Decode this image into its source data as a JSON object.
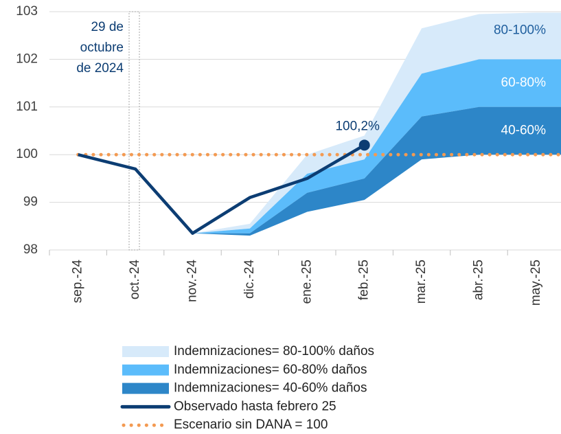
{
  "chart_data": {
    "type": "line",
    "categories": [
      "sep.-24",
      "oct.-24",
      "nov.-24",
      "dic.-24",
      "ene.-25",
      "feb.-25",
      "mar.-25",
      "abr.-25",
      "may.-25"
    ],
    "ylim": [
      98,
      103
    ],
    "yticks": [
      98,
      99,
      100,
      101,
      102,
      103
    ],
    "grid": true,
    "annotation": [
      "29 de",
      "octubre",
      "de 2024"
    ],
    "series": [
      {
        "name": "Indemnizaciones= 80-100% daños",
        "kind": "range",
        "label": "80-100%",
        "color": "#d7eafa",
        "lower": [
          null,
          null,
          98.35,
          98.45,
          99.6,
          99.9,
          101.7,
          102.0,
          102.0
        ],
        "upper": [
          null,
          null,
          98.35,
          98.55,
          100.0,
          100.4,
          102.65,
          102.95,
          102.98
        ]
      },
      {
        "name": "Indemnizaciones= 60-80% daños",
        "kind": "range",
        "label": "60-80%",
        "color": "#5bbcfb",
        "lower": [
          null,
          null,
          98.35,
          98.35,
          99.2,
          99.5,
          100.8,
          101.0,
          101.0
        ],
        "upper": [
          null,
          null,
          98.35,
          98.45,
          99.6,
          99.9,
          101.7,
          102.0,
          102.0
        ]
      },
      {
        "name": "Indemnizaciones= 40-60% daños",
        "kind": "range",
        "label": "40-60%",
        "color": "#2d86c8",
        "lower": [
          null,
          null,
          98.35,
          98.3,
          98.8,
          99.05,
          99.9,
          100.0,
          100.0
        ],
        "upper": [
          null,
          null,
          98.35,
          98.35,
          99.2,
          99.5,
          100.8,
          101.0,
          101.0
        ]
      },
      {
        "name": "Observado hasta febrero 25",
        "kind": "line",
        "color": "#0c3d73",
        "values": [
          100,
          99.7,
          98.35,
          99.1,
          99.5,
          100.2,
          null,
          null,
          null
        ],
        "value_labels": [
          null,
          null,
          null,
          null,
          null,
          "100,2%",
          null,
          null,
          null
        ]
      },
      {
        "name": "Escenario sin DANA = 100",
        "kind": "dotted",
        "color": "#f39a52",
        "values": [
          100,
          100,
          100,
          100,
          100,
          100,
          100,
          100,
          100
        ]
      }
    ]
  }
}
